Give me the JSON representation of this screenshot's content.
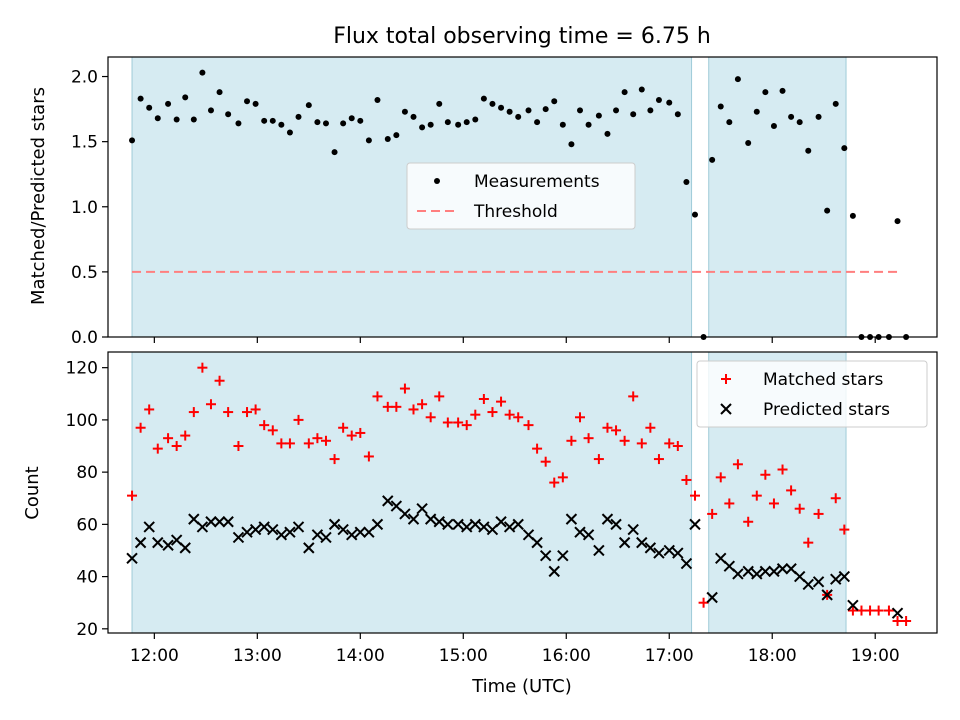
{
  "chart_data": [
    {
      "type": "scatter",
      "title": "Flux total observing time = 6.75 h",
      "xlabel": "",
      "ylabel": "Matched/Predicted stars",
      "ylim": [
        0,
        2.15
      ],
      "yticks": [
        "0.0",
        "0.5",
        "1.0",
        "1.5",
        "2.0"
      ],
      "xlim": [
        "11:33",
        "19:36"
      ],
      "shaded_spans": [
        [
          "11:47",
          "17:13"
        ],
        [
          "17:23",
          "18:43"
        ]
      ],
      "legend": {
        "position": "center",
        "entries": [
          "Measurements",
          "Threshold"
        ]
      },
      "threshold": {
        "name": "Threshold",
        "y": 0.5,
        "x_range": [
          "11:47",
          "19:14"
        ],
        "style": "dashed",
        "color": "#ff7f7f"
      },
      "series": [
        {
          "name": "Measurements",
          "color": "#000000",
          "marker": "dot",
          "points": [
            [
              "11:47",
              1.51
            ],
            [
              "11:52",
              1.83
            ],
            [
              "11:57",
              1.76
            ],
            [
              "12:02",
              1.68
            ],
            [
              "12:08",
              1.79
            ],
            [
              "12:13",
              1.67
            ],
            [
              "12:18",
              1.84
            ],
            [
              "12:23",
              1.67
            ],
            [
              "12:28",
              2.03
            ],
            [
              "12:33",
              1.74
            ],
            [
              "12:38",
              1.88
            ],
            [
              "12:43",
              1.71
            ],
            [
              "12:49",
              1.64
            ],
            [
              "12:54",
              1.81
            ],
            [
              "12:59",
              1.79
            ],
            [
              "13:04",
              1.66
            ],
            [
              "13:09",
              1.66
            ],
            [
              "13:14",
              1.63
            ],
            [
              "13:19",
              1.57
            ],
            [
              "13:24",
              1.69
            ],
            [
              "13:30",
              1.78
            ],
            [
              "13:35",
              1.65
            ],
            [
              "13:40",
              1.64
            ],
            [
              "13:45",
              1.42
            ],
            [
              "13:50",
              1.64
            ],
            [
              "13:55",
              1.68
            ],
            [
              "14:00",
              1.66
            ],
            [
              "14:05",
              1.51
            ],
            [
              "14:10",
              1.82
            ],
            [
              "14:16",
              1.52
            ],
            [
              "14:21",
              1.55
            ],
            [
              "14:26",
              1.73
            ],
            [
              "14:31",
              1.69
            ],
            [
              "14:36",
              1.61
            ],
            [
              "14:41",
              1.63
            ],
            [
              "14:46",
              1.79
            ],
            [
              "14:51",
              1.65
            ],
            [
              "14:57",
              1.63
            ],
            [
              "15:02",
              1.65
            ],
            [
              "15:07",
              1.67
            ],
            [
              "15:12",
              1.83
            ],
            [
              "15:17",
              1.79
            ],
            [
              "15:22",
              1.76
            ],
            [
              "15:27",
              1.73
            ],
            [
              "15:32",
              1.69
            ],
            [
              "15:38",
              1.74
            ],
            [
              "15:43",
              1.65
            ],
            [
              "15:48",
              1.75
            ],
            [
              "15:53",
              1.81
            ],
            [
              "15:58",
              1.63
            ],
            [
              "16:03",
              1.48
            ],
            [
              "16:08",
              1.74
            ],
            [
              "16:13",
              1.63
            ],
            [
              "16:19",
              1.7
            ],
            [
              "16:24",
              1.56
            ],
            [
              "16:29",
              1.74
            ],
            [
              "16:34",
              1.88
            ],
            [
              "16:39",
              1.71
            ],
            [
              "16:44",
              1.9
            ],
            [
              "16:49",
              1.74
            ],
            [
              "16:54",
              1.82
            ],
            [
              "17:00",
              1.8
            ],
            [
              "17:05",
              1.71
            ],
            [
              "17:10",
              1.19
            ],
            [
              "17:15",
              0.94
            ],
            [
              "17:20",
              0.0
            ],
            [
              "17:25",
              1.36
            ],
            [
              "17:30",
              1.77
            ],
            [
              "17:35",
              1.65
            ],
            [
              "17:40",
              1.98
            ],
            [
              "17:46",
              1.49
            ],
            [
              "17:51",
              1.73
            ],
            [
              "17:56",
              1.88
            ],
            [
              "18:01",
              1.62
            ],
            [
              "18:06",
              1.89
            ],
            [
              "18:11",
              1.69
            ],
            [
              "18:16",
              1.65
            ],
            [
              "18:21",
              1.43
            ],
            [
              "18:27",
              1.69
            ],
            [
              "18:32",
              0.97
            ],
            [
              "18:37",
              1.79
            ],
            [
              "18:42",
              1.45
            ],
            [
              "18:47",
              0.93
            ],
            [
              "18:52",
              0.0
            ],
            [
              "18:57",
              0.0
            ],
            [
              "19:02",
              0.0
            ],
            [
              "19:08",
              0.0
            ],
            [
              "19:13",
              0.89
            ],
            [
              "19:18",
              0.0
            ]
          ]
        }
      ]
    },
    {
      "type": "scatter",
      "title": "",
      "xlabel": "Time (UTC)",
      "ylabel": "Count",
      "ylim": [
        18.4,
        126
      ],
      "yticks": [
        "20",
        "40",
        "60",
        "80",
        "100",
        "120"
      ],
      "xticks": [
        "12:00",
        "13:00",
        "14:00",
        "15:00",
        "16:00",
        "17:00",
        "18:00",
        "19:00"
      ],
      "xlim": [
        "11:33",
        "19:36"
      ],
      "shaded_spans": [
        [
          "11:47",
          "17:13"
        ],
        [
          "17:23",
          "18:43"
        ]
      ],
      "legend": {
        "position": "top-right",
        "entries": [
          "Matched stars",
          "Predicted stars"
        ]
      },
      "series": [
        {
          "name": "Matched stars",
          "color": "#ff0000",
          "marker": "plus",
          "times": [
            "11:47",
            "11:52",
            "11:57",
            "12:02",
            "12:08",
            "12:13",
            "12:18",
            "12:23",
            "12:28",
            "12:33",
            "12:38",
            "12:43",
            "12:49",
            "12:54",
            "12:59",
            "13:04",
            "13:09",
            "13:14",
            "13:19",
            "13:24",
            "13:30",
            "13:35",
            "13:40",
            "13:45",
            "13:50",
            "13:55",
            "14:00",
            "14:05",
            "14:10",
            "14:16",
            "14:21",
            "14:26",
            "14:31",
            "14:36",
            "14:41",
            "14:46",
            "14:51",
            "14:57",
            "15:02",
            "15:07",
            "15:12",
            "15:17",
            "15:22",
            "15:27",
            "15:32",
            "15:38",
            "15:43",
            "15:48",
            "15:53",
            "15:58",
            "16:03",
            "16:08",
            "16:13",
            "16:19",
            "16:24",
            "16:29",
            "16:34",
            "16:39",
            "16:44",
            "16:49",
            "16:54",
            "17:00",
            "17:05",
            "17:10",
            "17:15",
            "17:20",
            "17:25",
            "17:30",
            "17:35",
            "17:40",
            "17:46",
            "17:51",
            "17:56",
            "18:01",
            "18:06",
            "18:11",
            "18:16",
            "18:21",
            "18:27",
            "18:32",
            "18:37",
            "18:42",
            "18:47",
            "18:52",
            "18:57",
            "19:02",
            "19:08",
            "19:13",
            "19:18"
          ],
          "values": [
            71,
            97,
            104,
            89,
            93,
            90,
            94,
            103,
            120,
            106,
            115,
            103,
            90,
            103,
            104,
            98,
            96,
            91,
            91,
            100,
            91,
            93,
            92,
            85,
            97,
            94,
            95,
            86,
            109,
            105,
            105,
            112,
            104,
            106,
            101,
            109,
            99,
            99,
            98,
            102,
            108,
            103,
            107,
            102,
            101,
            98,
            89,
            84,
            76,
            78,
            92,
            101,
            93,
            85,
            97,
            96,
            92,
            109,
            91,
            97,
            85,
            91,
            90,
            77,
            71,
            30,
            64,
            78,
            68,
            83,
            61,
            71,
            79,
            68,
            81,
            73,
            66,
            53,
            64,
            33,
            70,
            58,
            27,
            27,
            27,
            27,
            27,
            23,
            23
          ]
        },
        {
          "name": "Predicted stars",
          "color": "#000000",
          "marker": "x",
          "times": [
            "11:47",
            "11:52",
            "11:57",
            "12:02",
            "12:08",
            "12:13",
            "12:18",
            "12:23",
            "12:28",
            "12:33",
            "12:38",
            "12:43",
            "12:49",
            "12:54",
            "12:59",
            "13:04",
            "13:09",
            "13:14",
            "13:19",
            "13:24",
            "13:30",
            "13:35",
            "13:40",
            "13:45",
            "13:50",
            "13:55",
            "14:00",
            "14:05",
            "14:10",
            "14:16",
            "14:21",
            "14:26",
            "14:31",
            "14:36",
            "14:41",
            "14:46",
            "14:51",
            "14:57",
            "15:02",
            "15:07",
            "15:12",
            "15:17",
            "15:22",
            "15:27",
            "15:32",
            "15:38",
            "15:43",
            "15:48",
            "15:53",
            "15:58",
            "16:03",
            "16:08",
            "16:13",
            "16:19",
            "16:24",
            "16:29",
            "16:34",
            "16:39",
            "16:44",
            "16:49",
            "16:54",
            "17:00",
            "17:05",
            "17:10",
            "17:15",
            "17:25",
            "17:30",
            "17:35",
            "17:40",
            "17:46",
            "17:51",
            "17:56",
            "18:01",
            "18:06",
            "18:11",
            "18:16",
            "18:21",
            "18:27",
            "18:32",
            "18:37",
            "18:42",
            "18:47",
            "19:13"
          ],
          "values": [
            47,
            53,
            59,
            53,
            52,
            54,
            51,
            62,
            59,
            61,
            61,
            61,
            55,
            57,
            58,
            59,
            58,
            56,
            57,
            59,
            51,
            56,
            55,
            60,
            58,
            56,
            57,
            57,
            60,
            69,
            67,
            64,
            62,
            66,
            62,
            61,
            60,
            60,
            59,
            60,
            59,
            58,
            61,
            59,
            60,
            56,
            53,
            48,
            42,
            48,
            62,
            57,
            56,
            50,
            62,
            60,
            53,
            58,
            53,
            51,
            49,
            50,
            49,
            45,
            60,
            32,
            47,
            44,
            41,
            42,
            41,
            42,
            42,
            43,
            43,
            40,
            37,
            38,
            33,
            39,
            40,
            29,
            26
          ]
        }
      ]
    }
  ]
}
